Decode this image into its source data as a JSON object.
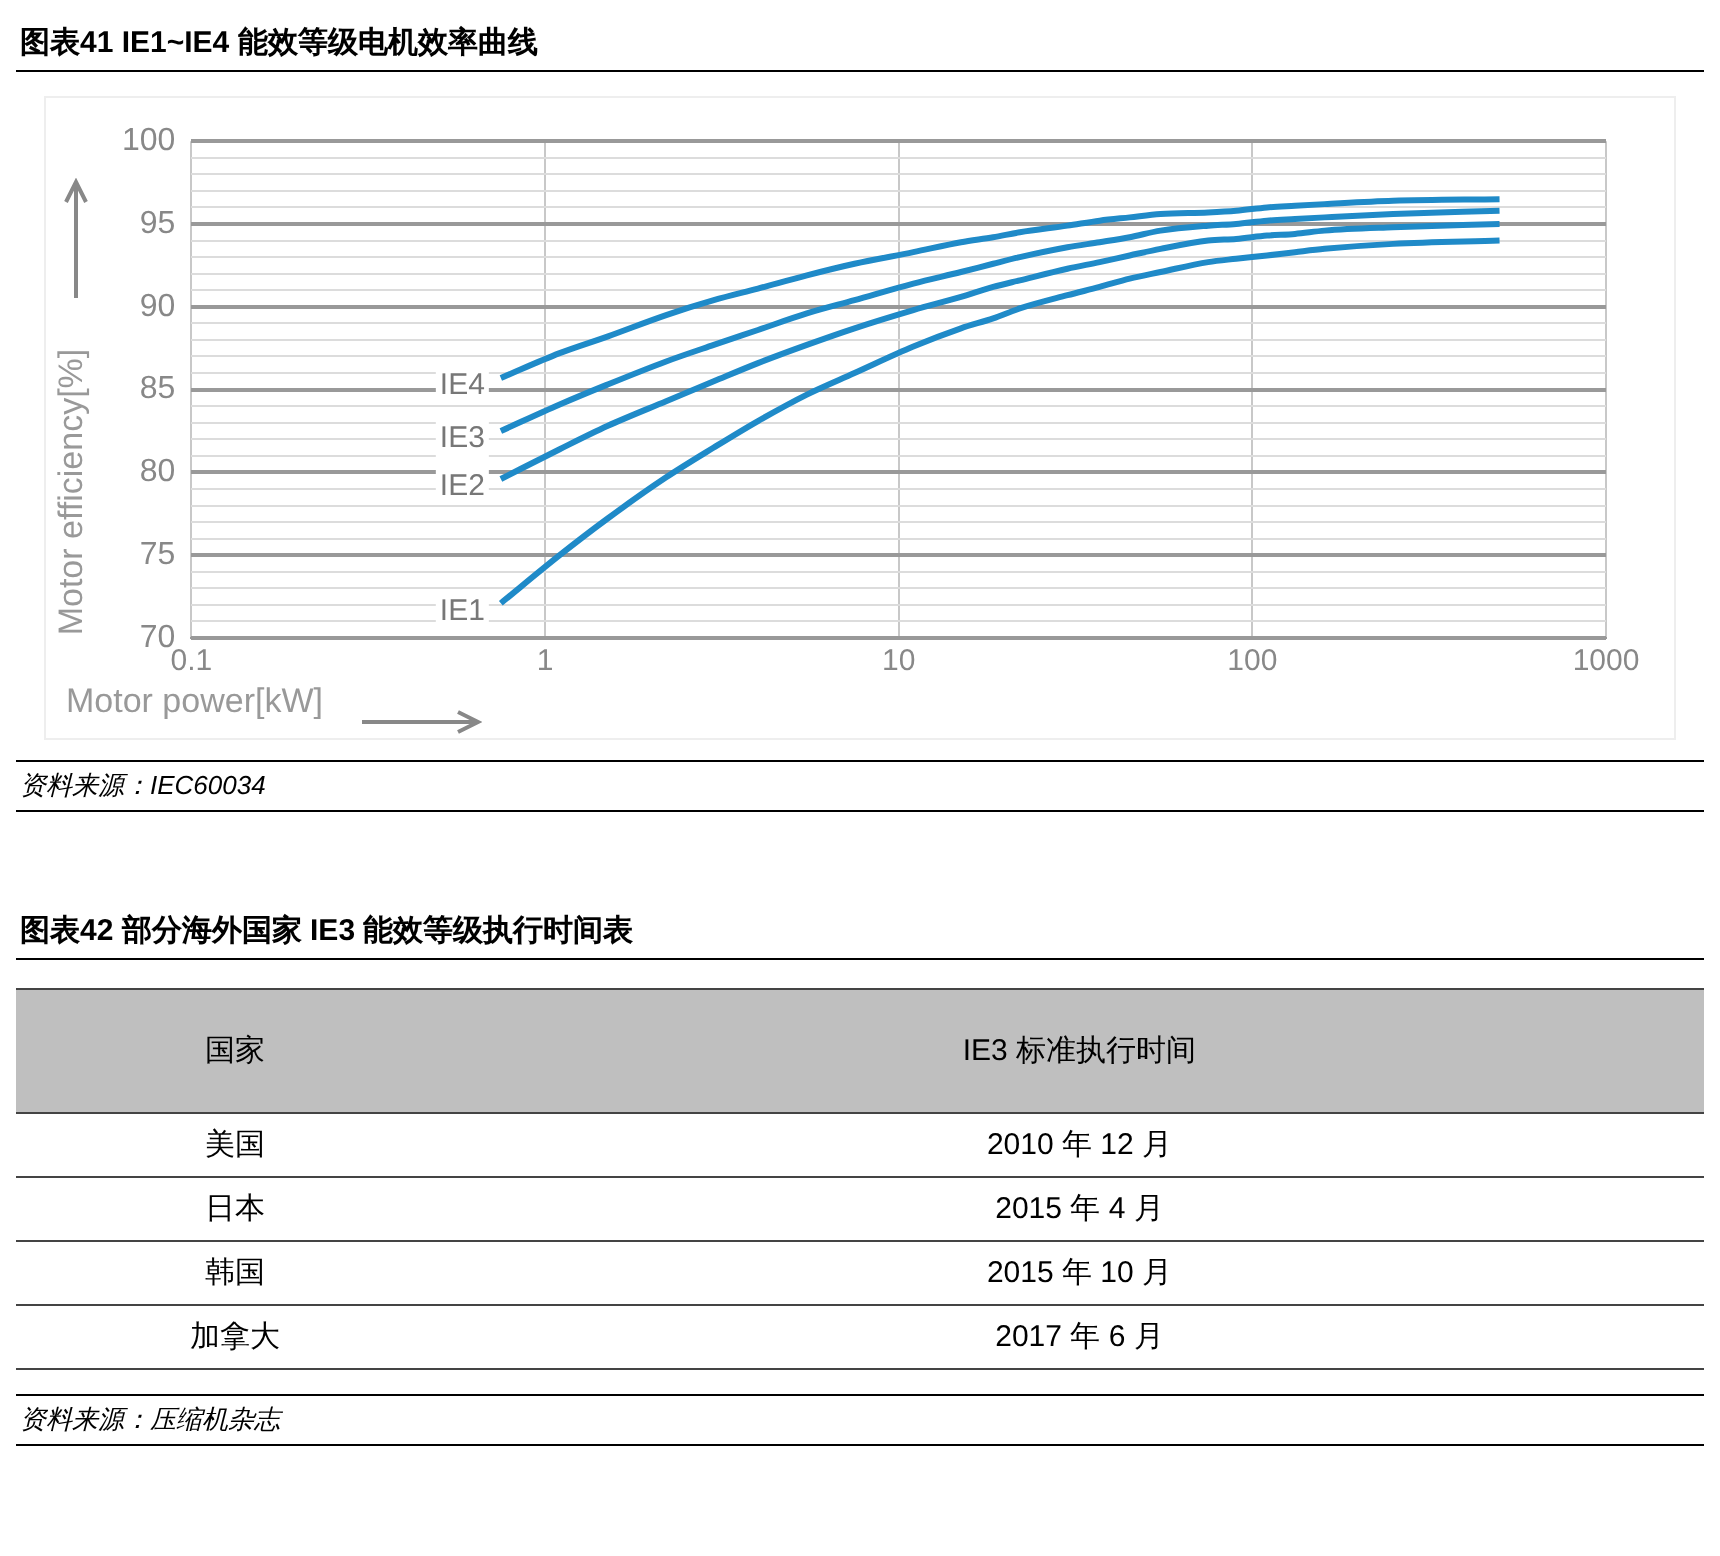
{
  "chart_data": [
    {
      "type": "line",
      "title": "图表41    IE1~IE4 能效等级电机效率曲线",
      "xlabel": "Motor power[kW]",
      "ylabel": "Motor efficiency[%]",
      "log": "x",
      "grid": true,
      "marker": "none",
      "line_style": "solid",
      "xlim": [
        0.1,
        1000
      ],
      "xticks": [
        0.1,
        1,
        10,
        100,
        1000
      ],
      "ylim": [
        70,
        100
      ],
      "yticks": [
        70,
        {
          "value": 71,
          "label": null
        },
        {
          "value": 72,
          "label": null
        },
        {
          "value": 73,
          "label": null
        },
        {
          "value": 74,
          "label": null
        },
        75,
        {
          "value": 76,
          "label": null
        },
        {
          "value": 77,
          "label": null
        },
        {
          "value": 78,
          "label": null
        },
        {
          "value": 79,
          "label": null
        },
        80,
        {
          "value": 81,
          "label": null
        },
        {
          "value": 82,
          "label": null
        },
        {
          "value": 83,
          "label": null
        },
        {
          "value": 84,
          "label": null
        },
        85,
        {
          "value": 86,
          "label": null
        },
        {
          "value": 87,
          "label": null
        },
        {
          "value": 88,
          "label": null
        },
        {
          "value": 89,
          "label": null
        },
        90,
        {
          "value": 91,
          "label": null
        },
        {
          "value": 92,
          "label": null
        },
        {
          "value": 93,
          "label": null
        },
        {
          "value": 94,
          "label": null
        },
        95,
        {
          "value": 96,
          "label": null
        },
        {
          "value": 97,
          "label": null
        },
        {
          "value": 98,
          "label": null
        },
        {
          "value": 99,
          "label": null
        },
        100
      ],
      "x": [
        0.75,
        1.1,
        1.5,
        2.2,
        3,
        4,
        5.5,
        7.5,
        11,
        15,
        18.5,
        22,
        30,
        37,
        45,
        55,
        75,
        90,
        110,
        132,
        160,
        250,
        500
      ],
      "series": [
        {
          "name": "IE1",
          "color": "#1f8ac8",
          "values": [
            72.1,
            75.0,
            77.2,
            79.7,
            81.5,
            83.1,
            84.7,
            86.0,
            87.6,
            88.7,
            89.3,
            89.9,
            90.7,
            91.2,
            91.7,
            92.1,
            92.7,
            92.9,
            93.1,
            93.3,
            93.5,
            93.8,
            94.0
          ]
        },
        {
          "name": "IE2",
          "color": "#1f8ac8",
          "values": [
            79.6,
            81.4,
            82.8,
            84.3,
            85.5,
            86.6,
            87.7,
            88.7,
            89.8,
            90.6,
            91.2,
            91.6,
            92.3,
            92.7,
            93.1,
            93.5,
            94.0,
            94.1,
            94.3,
            94.4,
            94.6,
            94.8,
            95.0
          ]
        },
        {
          "name": "IE3",
          "color": "#1f8ac8",
          "values": [
            82.5,
            84.1,
            85.3,
            86.7,
            87.7,
            88.6,
            89.6,
            90.4,
            91.4,
            92.1,
            92.6,
            93.0,
            93.6,
            93.9,
            94.2,
            94.6,
            94.9,
            95.0,
            95.2,
            95.3,
            95.4,
            95.6,
            95.8
          ]
        },
        {
          "name": "IE4",
          "color": "#1f8ac8",
          "values": [
            85.7,
            87.2,
            88.2,
            89.5,
            90.4,
            91.1,
            91.9,
            92.6,
            93.3,
            93.9,
            94.2,
            94.5,
            94.9,
            95.2,
            95.4,
            95.6,
            95.7,
            95.8,
            96.0,
            96.1,
            96.2,
            96.4,
            96.5
          ]
        }
      ],
      "annotations": [
        "资料来源：IEC60034"
      ]
    },
    {
      "type": "other",
      "title": "图表42    部分海外国家 IE3 能效等级执行时间表",
      "annotations": [
        "国家",
        "IE3 标准执行时间",
        "美国",
        "2010 年 12 月",
        "日本",
        "2015 年 4 月",
        "韩国",
        "2015 年 10 月",
        "加拿大",
        "2017 年 6 月",
        "资料来源：压缩机杂志"
      ]
    }
  ]
}
